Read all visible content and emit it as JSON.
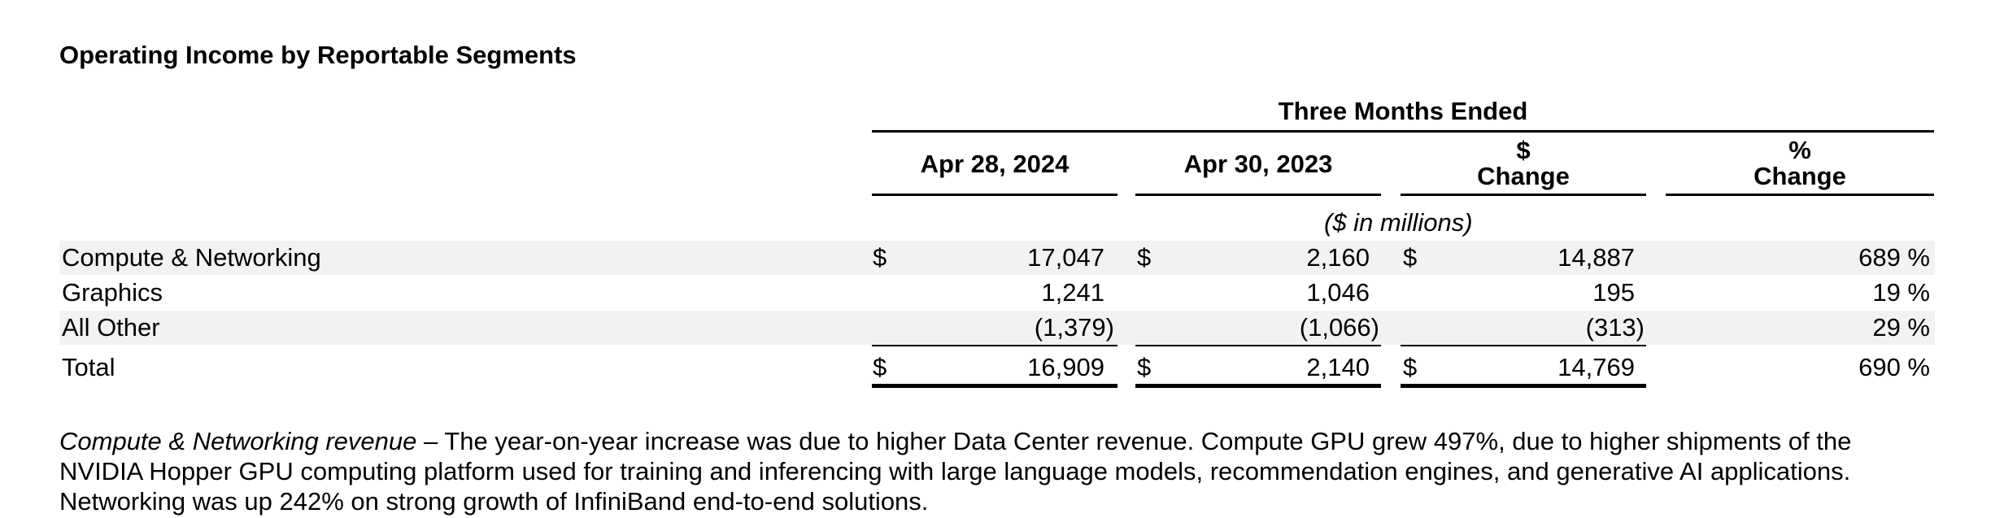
{
  "title": "Operating Income by Reportable Segments",
  "header": {
    "group": "Three Months Ended",
    "col1": "Apr 28, 2024",
    "col2": "Apr 30, 2023",
    "col3_line1": "$",
    "col3_line2": "Change",
    "col4_line1": "%",
    "col4_line2": "Change",
    "units": "($ in millions)"
  },
  "currency_symbol": "$",
  "rows": [
    {
      "label": "Compute & Networking",
      "apr2024": "17,047",
      "apr2023": "2,160",
      "dollar_change": "14,887",
      "pct_change": "689 %"
    },
    {
      "label": "Graphics",
      "apr2024": "1,241",
      "apr2023": "1,046",
      "dollar_change": "195",
      "pct_change": "19 %"
    },
    {
      "label": "All Other",
      "apr2024": "(1,379)",
      "apr2023": "(1,066)",
      "dollar_change": "(313)",
      "pct_change": "29 %"
    }
  ],
  "total": {
    "label": "Total",
    "apr2024": "16,909",
    "apr2023": "2,140",
    "dollar_change": "14,769",
    "pct_change": "690 %"
  },
  "paragraph": {
    "lead": "Compute & Networking revenue",
    "body": " – The year-on-year increase was due to higher Data Center revenue. Compute GPU grew 497%, due to higher shipments of the NVIDIA Hopper GPU computing platform used for training and inferencing with large language models, recommendation engines, and generative AI applications. Networking was up 242% on strong growth of InfiniBand end-to-end solutions."
  }
}
